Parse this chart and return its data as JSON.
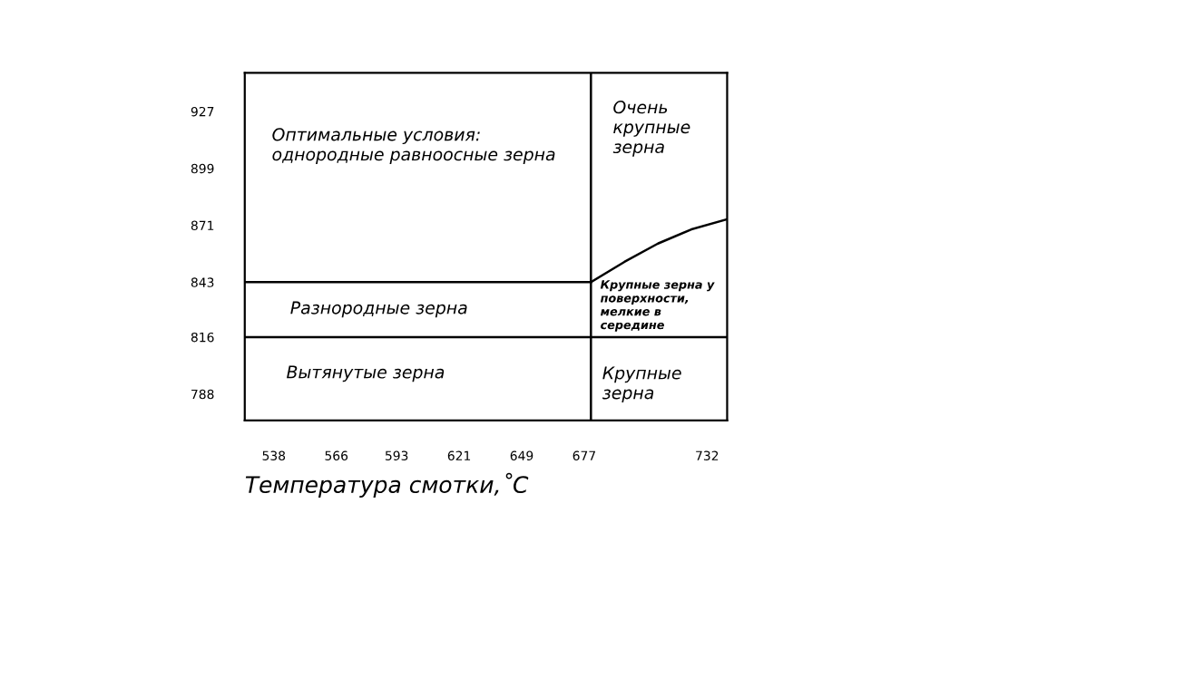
{
  "chart_data": {
    "type": "line",
    "xlabel": "Температура смотки,˚C",
    "xlim": [
      525,
      741
    ],
    "xticks": [
      538,
      566,
      593,
      621,
      649,
      677,
      732
    ],
    "ylim": [
      775,
      946
    ],
    "yticks": [
      788,
      816,
      843,
      871,
      899,
      927
    ],
    "grid": false,
    "legend": false,
    "marker": "none",
    "line_style": "solid",
    "series": [
      {
        "color": "#000000",
        "x": [
          525,
          680
        ],
        "values": [
          843,
          843
        ]
      },
      {
        "color": "#000000",
        "x": [
          680,
          695,
          710,
          725,
          741
        ],
        "values": [
          843,
          853,
          862,
          869,
          874
        ]
      }
    ],
    "ref_lines": [
      {
        "axis": "x",
        "value": 680,
        "color": "#000000"
      },
      {
        "axis": "y",
        "value": 816,
        "color": "#000000"
      }
    ],
    "annotations": [
      "Оптимальные условия:\nоднородные равноосные зерна",
      "Очень\nкрупные\nзерна",
      "Разнородные зерна",
      "Крупные зерна у\nповерхности,\nмелкие в\nсередине",
      "Вытянутые зерна",
      "Крупные\nзерна"
    ]
  }
}
